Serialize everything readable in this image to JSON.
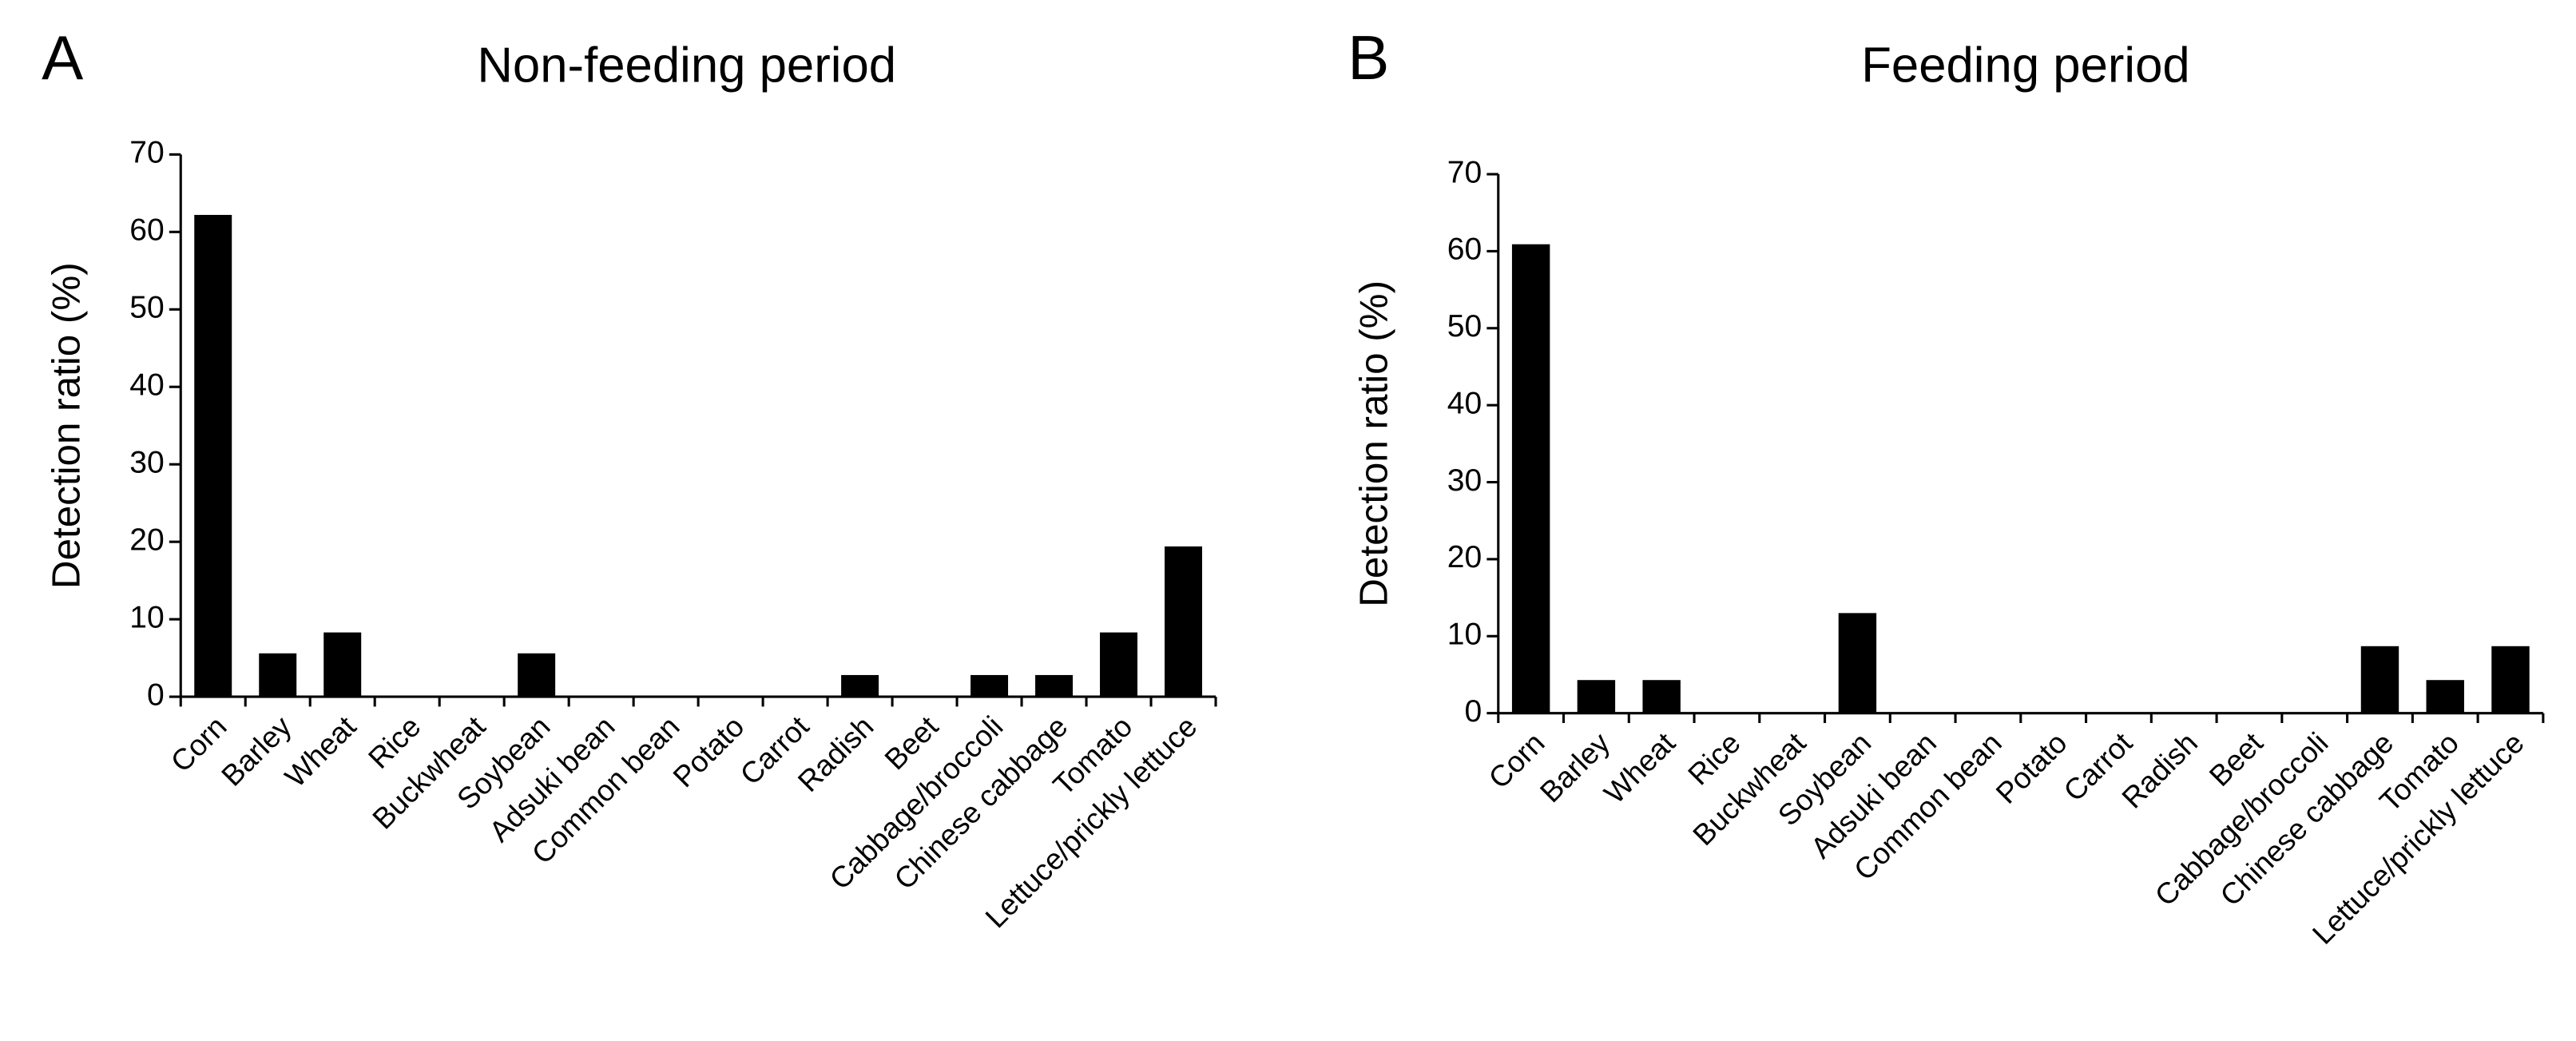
{
  "chart_data": [
    {
      "type": "bar",
      "panel": "A",
      "title": "Non-feeding period",
      "y_label": "Detection ratio (%)",
      "categories": [
        "Corn",
        "Barley",
        "Wheat",
        "Rice",
        "Buckwheat",
        "Soybean",
        "Adsuki bean",
        "Common bean",
        "Potato",
        "Carrot",
        "Radish",
        "Beet",
        "Cabbage/broccoli",
        "Chinese cabbage",
        "Tomato",
        "Lettuce/prickly lettuce"
      ],
      "values": [
        62.2,
        5.6,
        8.3,
        0,
        0,
        5.6,
        0,
        0,
        0,
        0,
        2.8,
        0,
        2.8,
        2.8,
        8.3,
        19.4
      ],
      "color": "#000000",
      "ylim": [
        0,
        70
      ],
      "yticks": [
        0,
        10,
        20,
        30,
        40,
        50,
        60,
        70
      ],
      "grid": false
    },
    {
      "type": "bar",
      "panel": "B",
      "title": "Feeding period",
      "y_label": "Detection ratio (%)",
      "categories": [
        "Corn",
        "Barley",
        "Wheat",
        "Rice",
        "Buckwheat",
        "Soybean",
        "Adsuki bean",
        "Common bean",
        "Potato",
        "Carrot",
        "Radish",
        "Beet",
        "Cabbage/broccoli",
        "Chinese cabbage",
        "Tomato",
        "Lettuce/prickly lettuce"
      ],
      "values": [
        60.9,
        4.3,
        4.3,
        0,
        0,
        13.0,
        0,
        0,
        0,
        0,
        0,
        0,
        0,
        8.7,
        4.3,
        8.7
      ],
      "color": "#000000",
      "ylim": [
        0,
        70
      ],
      "yticks": [
        0,
        10,
        20,
        30,
        40,
        50,
        60,
        70
      ],
      "grid": false
    }
  ]
}
